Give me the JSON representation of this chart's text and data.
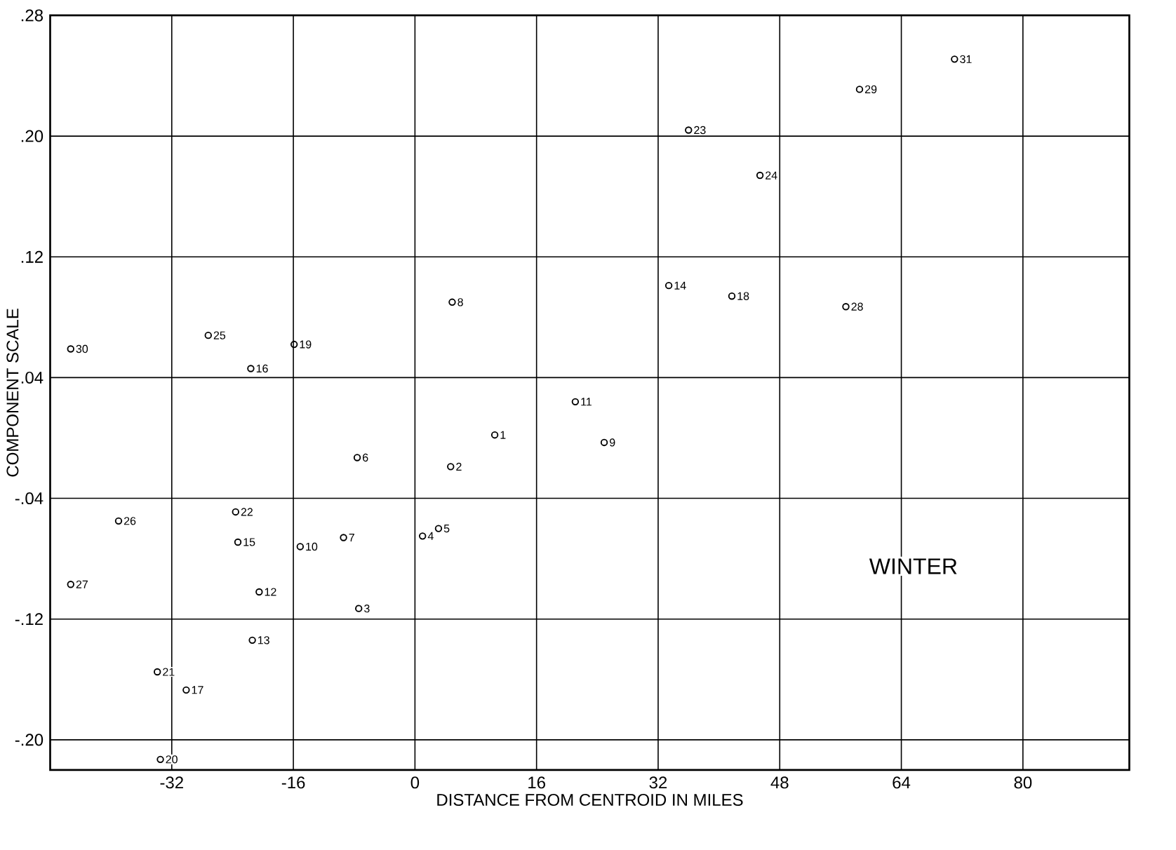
{
  "chart_data": {
    "type": "scatter",
    "xlabel": "DISTANCE FROM CENTROID IN MILES",
    "ylabel": "COMPONENT SCALE",
    "xlim": [
      -48,
      94
    ],
    "ylim": [
      -0.22,
      0.28
    ],
    "xticks": [
      -32,
      -16,
      0,
      16,
      32,
      48,
      64,
      80
    ],
    "yticks": [
      {
        "value": 0.28,
        "label": ".28"
      },
      {
        "value": 0.2,
        "label": ".20"
      },
      {
        "value": 0.12,
        "label": ".12"
      },
      {
        "value": 0.04,
        "label": ".04"
      },
      {
        "value": -0.04,
        "label": "-.04"
      },
      {
        "value": -0.12,
        "label": "-.12"
      },
      {
        "value": -0.2,
        "label": "-.20"
      }
    ],
    "grid": true,
    "marker": "circle",
    "series": [
      {
        "color": "#000000",
        "x": [
          -45.3,
          -27.2,
          -15.9,
          -21.6,
          36.0,
          45.4,
          33.4,
          41.7,
          4.9,
          21.1,
          58.5,
          71.0,
          56.7,
          -7.6,
          -39.0,
          -23.6,
          -23.3,
          -15.1,
          -9.4,
          -45.3,
          -20.5,
          -7.4,
          -21.4,
          -33.9,
          -30.1,
          -33.5,
          10.5,
          24.9,
          4.7,
          1.0,
          3.1
        ],
        "values": [
          0.059,
          0.068,
          0.062,
          0.046,
          0.204,
          0.174,
          0.101,
          0.094,
          0.09,
          0.024,
          0.231,
          0.251,
          0.087,
          -0.013,
          -0.055,
          -0.049,
          -0.069,
          -0.072,
          -0.066,
          -0.097,
          -0.102,
          -0.113,
          -0.134,
          -0.155,
          -0.167,
          -0.213,
          0.002,
          -0.003,
          -0.019,
          -0.065,
          -0.06
        ]
      }
    ],
    "annotations": [
      {
        "text": "30",
        "x": -45.3,
        "y": 0.059
      },
      {
        "text": "25",
        "x": -27.2,
        "y": 0.068
      },
      {
        "text": "19",
        "x": -15.9,
        "y": 0.062
      },
      {
        "text": "16",
        "x": -21.6,
        "y": 0.046
      },
      {
        "text": "23",
        "x": 36.0,
        "y": 0.204
      },
      {
        "text": "24",
        "x": 45.4,
        "y": 0.174
      },
      {
        "text": "14",
        "x": 33.4,
        "y": 0.101
      },
      {
        "text": "18",
        "x": 41.7,
        "y": 0.094
      },
      {
        "text": "8",
        "x": 4.9,
        "y": 0.09
      },
      {
        "text": "11",
        "x": 21.1,
        "y": 0.024
      },
      {
        "text": "29",
        "x": 58.5,
        "y": 0.231
      },
      {
        "text": "31",
        "x": 71.0,
        "y": 0.251
      },
      {
        "text": "28",
        "x": 56.7,
        "y": 0.087
      },
      {
        "text": "6",
        "x": -7.6,
        "y": -0.013
      },
      {
        "text": "26",
        "x": -39.0,
        "y": -0.055
      },
      {
        "text": "22",
        "x": -23.6,
        "y": -0.049
      },
      {
        "text": "15",
        "x": -23.3,
        "y": -0.069
      },
      {
        "text": "10",
        "x": -15.1,
        "y": -0.072
      },
      {
        "text": "7",
        "x": -9.4,
        "y": -0.066
      },
      {
        "text": "27",
        "x": -45.3,
        "y": -0.097
      },
      {
        "text": "12",
        "x": -20.5,
        "y": -0.102
      },
      {
        "text": "3",
        "x": -7.4,
        "y": -0.113
      },
      {
        "text": "13",
        "x": -21.4,
        "y": -0.134
      },
      {
        "text": "21",
        "x": -33.9,
        "y": -0.155
      },
      {
        "text": "17",
        "x": -30.1,
        "y": -0.167
      },
      {
        "text": "20",
        "x": -33.5,
        "y": -0.213
      },
      {
        "text": "1",
        "x": 10.5,
        "y": 0.002
      },
      {
        "text": "9",
        "x": 24.9,
        "y": -0.003
      },
      {
        "text": "2",
        "x": 4.7,
        "y": -0.019
      },
      {
        "text": "4",
        "x": 1.0,
        "y": -0.065
      },
      {
        "text": "5",
        "x": 3.1,
        "y": -0.06
      },
      "WINTER"
    ]
  }
}
